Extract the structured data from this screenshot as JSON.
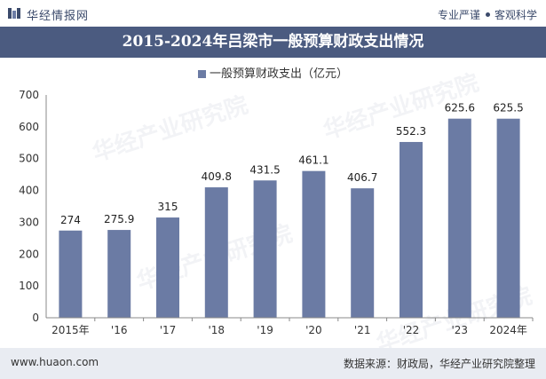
{
  "header": {
    "brand": "华经情报网",
    "tag_left": "专业严谨",
    "tag_right": "客观科学"
  },
  "watermark": "华经产业研究院",
  "chart_data": {
    "type": "bar",
    "title": "2015-2024年吕梁市一般预算财政支出情况",
    "legend": [
      "一般预算财政支出（亿元）"
    ],
    "categories": [
      "2015年",
      "'16",
      "'17",
      "'18",
      "'19",
      "'20",
      "'21",
      "'22",
      "'23",
      "2024年"
    ],
    "series": [
      {
        "name": "一般预算财政支出（亿元）",
        "values": [
          274,
          275.9,
          315,
          409.8,
          431.5,
          461.1,
          406.7,
          552.3,
          625.6,
          625.5
        ],
        "labels": [
          "274",
          "275.9",
          "315",
          "409.8",
          "431.5",
          "461.1",
          "406.7",
          "552.3",
          "625.6",
          "625.5"
        ]
      }
    ],
    "ylim": [
      0,
      700
    ],
    "yticks": [
      0,
      100,
      200,
      300,
      400,
      500,
      600,
      700
    ],
    "bar_color": "#6b7ba4",
    "xlabel": "",
    "ylabel": ""
  },
  "footer": {
    "url": "www.huaon.com",
    "source": "数据来源：财政局，华经产业研究院整理"
  }
}
